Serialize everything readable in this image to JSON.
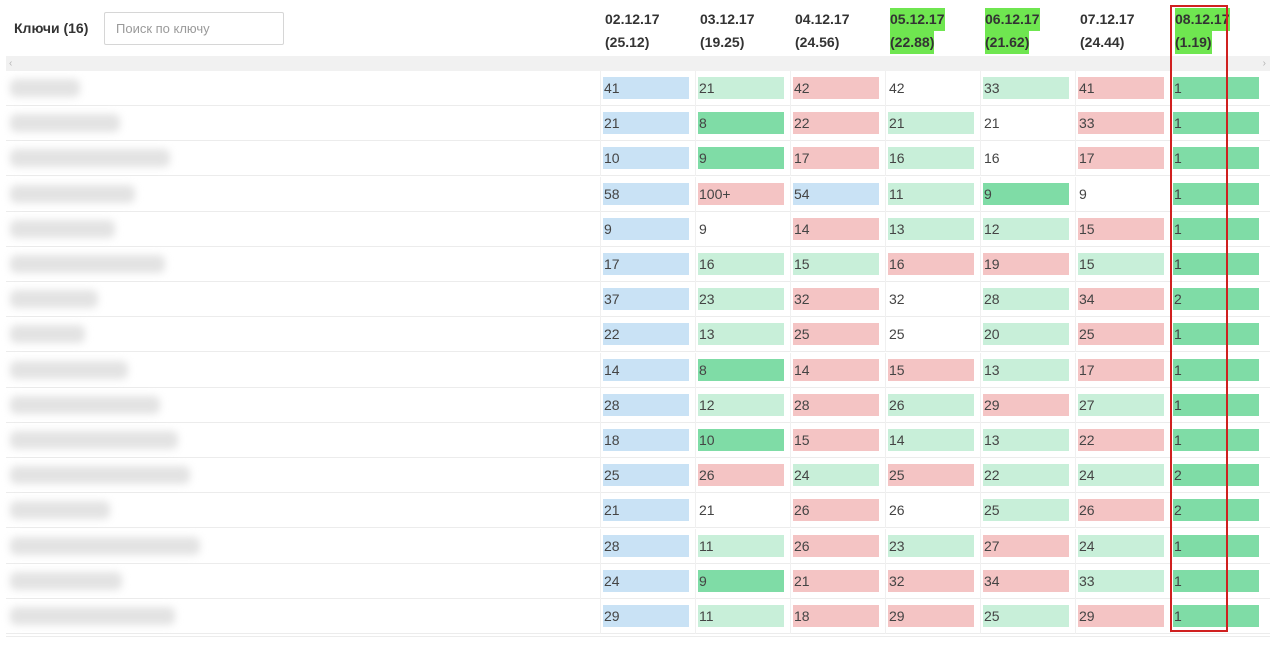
{
  "keys_label": "Ключи (16)",
  "search": {
    "placeholder": "Поиск по ключу",
    "value": ""
  },
  "colors": {
    "blue": "#c9e2f5",
    "light_green": "#c8efd9",
    "green": "#7fdca6",
    "red": "#f4c4c4",
    "header_highlight": "#6fe650",
    "selection_border": "#d02020"
  },
  "dates": [
    {
      "date": "02.12.17",
      "avg": "(25.12)",
      "highlight": false
    },
    {
      "date": "03.12.17",
      "avg": "(19.25)",
      "highlight": false
    },
    {
      "date": "04.12.17",
      "avg": "(24.56)",
      "highlight": false
    },
    {
      "date": "05.12.17",
      "avg": "(22.88)",
      "highlight": true
    },
    {
      "date": "06.12.17",
      "avg": "(21.62)",
      "highlight": true
    },
    {
      "date": "07.12.17",
      "avg": "(24.44)",
      "highlight": false
    },
    {
      "date": "08.12.17",
      "avg": "(1.19)",
      "highlight": true
    }
  ],
  "rows": [
    {
      "kw_width": 70,
      "cells": [
        [
          "41",
          "blue"
        ],
        [
          "21",
          "lgreen"
        ],
        [
          "42",
          "red"
        ],
        [
          "42",
          "none"
        ],
        [
          "33",
          "lgreen"
        ],
        [
          "41",
          "red"
        ],
        [
          "1",
          "green"
        ]
      ]
    },
    {
      "kw_width": 110,
      "cells": [
        [
          "21",
          "blue"
        ],
        [
          "8",
          "green"
        ],
        [
          "22",
          "red"
        ],
        [
          "21",
          "lgreen"
        ],
        [
          "21",
          "none"
        ],
        [
          "33",
          "red"
        ],
        [
          "1",
          "green"
        ]
      ]
    },
    {
      "kw_width": 160,
      "cells": [
        [
          "10",
          "blue"
        ],
        [
          "9",
          "green"
        ],
        [
          "17",
          "red"
        ],
        [
          "16",
          "lgreen"
        ],
        [
          "16",
          "none"
        ],
        [
          "17",
          "red"
        ],
        [
          "1",
          "green"
        ]
      ]
    },
    {
      "kw_width": 125,
      "cells": [
        [
          "58",
          "blue"
        ],
        [
          "100+",
          "red"
        ],
        [
          "54",
          "blue"
        ],
        [
          "11",
          "lgreen"
        ],
        [
          "9",
          "green"
        ],
        [
          "9",
          "none"
        ],
        [
          "1",
          "green"
        ]
      ]
    },
    {
      "kw_width": 105,
      "cells": [
        [
          "9",
          "blue"
        ],
        [
          "9",
          "none"
        ],
        [
          "14",
          "red"
        ],
        [
          "13",
          "lgreen"
        ],
        [
          "12",
          "lgreen"
        ],
        [
          "15",
          "red"
        ],
        [
          "1",
          "green"
        ]
      ]
    },
    {
      "kw_width": 155,
      "cells": [
        [
          "17",
          "blue"
        ],
        [
          "16",
          "lgreen"
        ],
        [
          "15",
          "lgreen"
        ],
        [
          "16",
          "red"
        ],
        [
          "19",
          "red"
        ],
        [
          "15",
          "lgreen"
        ],
        [
          "1",
          "green"
        ]
      ]
    },
    {
      "kw_width": 88,
      "cells": [
        [
          "37",
          "blue"
        ],
        [
          "23",
          "lgreen"
        ],
        [
          "32",
          "red"
        ],
        [
          "32",
          "none"
        ],
        [
          "28",
          "lgreen"
        ],
        [
          "34",
          "red"
        ],
        [
          "2",
          "green"
        ]
      ]
    },
    {
      "kw_width": 75,
      "cells": [
        [
          "22",
          "blue"
        ],
        [
          "13",
          "lgreen"
        ],
        [
          "25",
          "red"
        ],
        [
          "25",
          "none"
        ],
        [
          "20",
          "lgreen"
        ],
        [
          "25",
          "red"
        ],
        [
          "1",
          "green"
        ]
      ]
    },
    {
      "kw_width": 118,
      "cells": [
        [
          "14",
          "blue"
        ],
        [
          "8",
          "green"
        ],
        [
          "14",
          "red"
        ],
        [
          "15",
          "red"
        ],
        [
          "13",
          "lgreen"
        ],
        [
          "17",
          "red"
        ],
        [
          "1",
          "green"
        ]
      ]
    },
    {
      "kw_width": 150,
      "cells": [
        [
          "28",
          "blue"
        ],
        [
          "12",
          "lgreen"
        ],
        [
          "28",
          "red"
        ],
        [
          "26",
          "lgreen"
        ],
        [
          "29",
          "red"
        ],
        [
          "27",
          "lgreen"
        ],
        [
          "1",
          "green"
        ]
      ]
    },
    {
      "kw_width": 168,
      "cells": [
        [
          "18",
          "blue"
        ],
        [
          "10",
          "green"
        ],
        [
          "15",
          "red"
        ],
        [
          "14",
          "lgreen"
        ],
        [
          "13",
          "lgreen"
        ],
        [
          "22",
          "red"
        ],
        [
          "1",
          "green"
        ]
      ]
    },
    {
      "kw_width": 180,
      "cells": [
        [
          "25",
          "blue"
        ],
        [
          "26",
          "red"
        ],
        [
          "24",
          "lgreen"
        ],
        [
          "25",
          "red"
        ],
        [
          "22",
          "lgreen"
        ],
        [
          "24",
          "lgreen"
        ],
        [
          "2",
          "green"
        ]
      ]
    },
    {
      "kw_width": 100,
      "cells": [
        [
          "21",
          "blue"
        ],
        [
          "21",
          "none"
        ],
        [
          "26",
          "red"
        ],
        [
          "26",
          "none"
        ],
        [
          "25",
          "lgreen"
        ],
        [
          "26",
          "red"
        ],
        [
          "2",
          "green"
        ]
      ]
    },
    {
      "kw_width": 190,
      "cells": [
        [
          "28",
          "blue"
        ],
        [
          "11",
          "lgreen"
        ],
        [
          "26",
          "red"
        ],
        [
          "23",
          "lgreen"
        ],
        [
          "27",
          "red"
        ],
        [
          "24",
          "lgreen"
        ],
        [
          "1",
          "green"
        ]
      ]
    },
    {
      "kw_width": 112,
      "cells": [
        [
          "24",
          "blue"
        ],
        [
          "9",
          "green"
        ],
        [
          "21",
          "red"
        ],
        [
          "32",
          "red"
        ],
        [
          "34",
          "red"
        ],
        [
          "33",
          "lgreen"
        ],
        [
          "1",
          "green"
        ]
      ]
    },
    {
      "kw_width": 165,
      "cells": [
        [
          "29",
          "blue"
        ],
        [
          "11",
          "lgreen"
        ],
        [
          "18",
          "red"
        ],
        [
          "29",
          "red"
        ],
        [
          "25",
          "lgreen"
        ],
        [
          "29",
          "red"
        ],
        [
          "1",
          "green"
        ]
      ]
    }
  ]
}
